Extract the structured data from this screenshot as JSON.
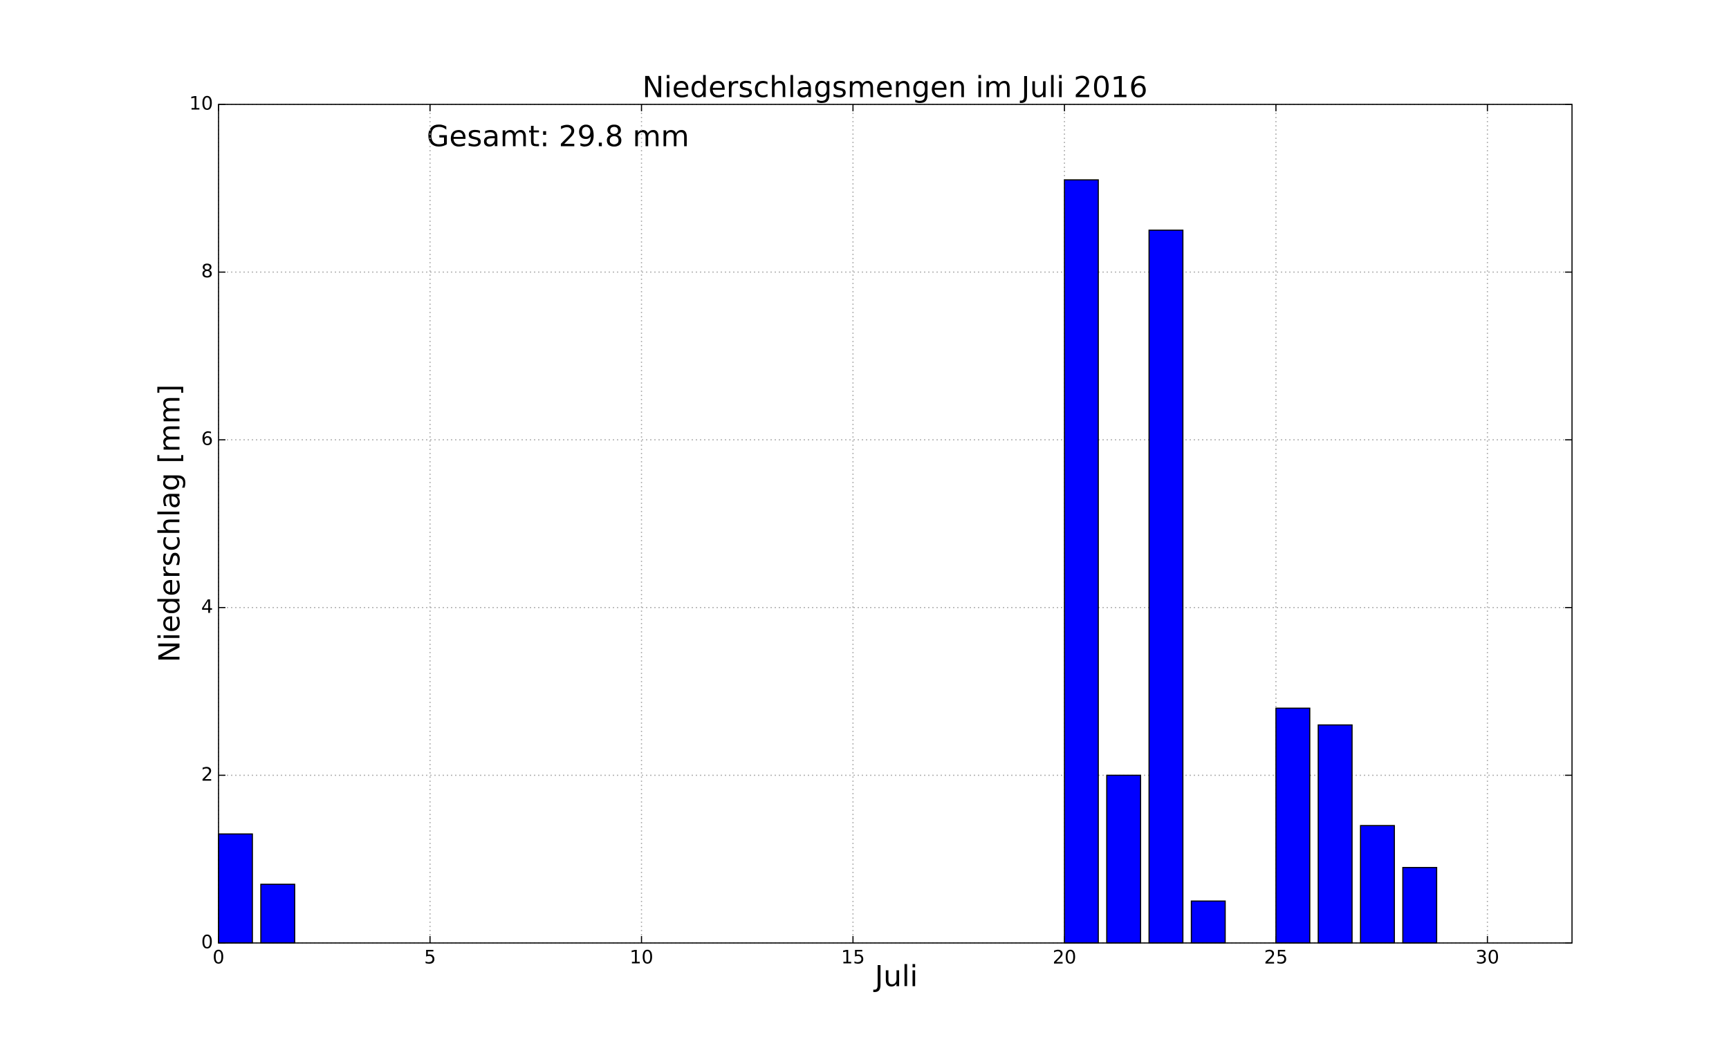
{
  "chart_data": {
    "type": "bar",
    "title": "Niederschlagsmengen im Juli 2016",
    "annotation": "Gesamt: 29.8 mm",
    "x_label": "Juli",
    "y_label": "Niederschlag [mm]",
    "x": [
      0,
      1,
      2,
      3,
      4,
      5,
      6,
      7,
      8,
      9,
      10,
      11,
      12,
      13,
      14,
      15,
      16,
      17,
      18,
      19,
      20,
      21,
      22,
      23,
      24,
      25,
      26,
      27,
      28,
      29,
      30
    ],
    "values": [
      1.3,
      0.7,
      0,
      0,
      0,
      0,
      0,
      0,
      0,
      0,
      0,
      0,
      0,
      0,
      0,
      0,
      0,
      0,
      0,
      0,
      9.1,
      2.0,
      8.5,
      0.5,
      0,
      2.8,
      2.6,
      1.4,
      0.9,
      0,
      0
    ],
    "color": "#0000ff",
    "xlim": [
      0,
      32
    ],
    "xticks": [
      0,
      5,
      10,
      15,
      20,
      25,
      30
    ],
    "ylim": [
      0,
      10
    ],
    "yticks": [
      0,
      2,
      4,
      6,
      8,
      10
    ],
    "grid": true
  }
}
